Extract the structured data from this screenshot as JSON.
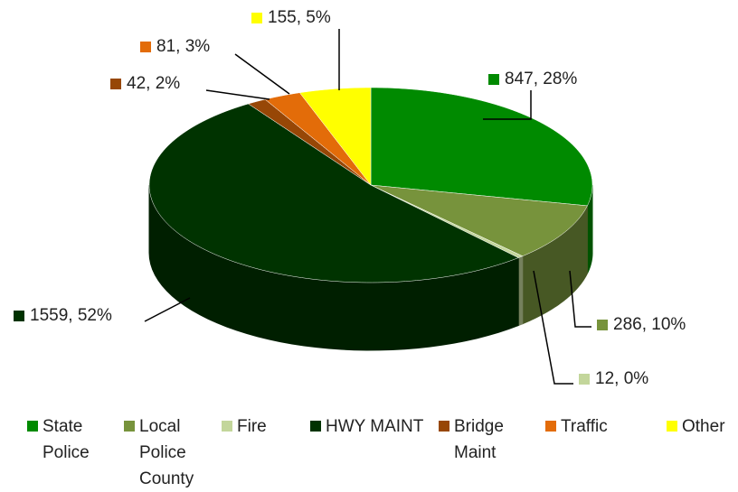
{
  "chart_data": {
    "type": "pie",
    "categories": [
      "State Police",
      "Local Police County",
      "Fire",
      "HWY MAINT",
      "Bridge Maint",
      "Traffic",
      "Other"
    ],
    "values": [
      847,
      286,
      12,
      1559,
      42,
      81,
      155
    ],
    "value_labels": [
      "847, 28%",
      "286, 10%",
      "12, 0%",
      "1559, 52%",
      "42, 2%",
      "81, 3%",
      "155, 5%"
    ],
    "colors": [
      "#008a00",
      "#77933c",
      "#c3d69b",
      "#003300",
      "#974706",
      "#e36c09",
      "#ffff00"
    ],
    "legend": "bottom"
  }
}
